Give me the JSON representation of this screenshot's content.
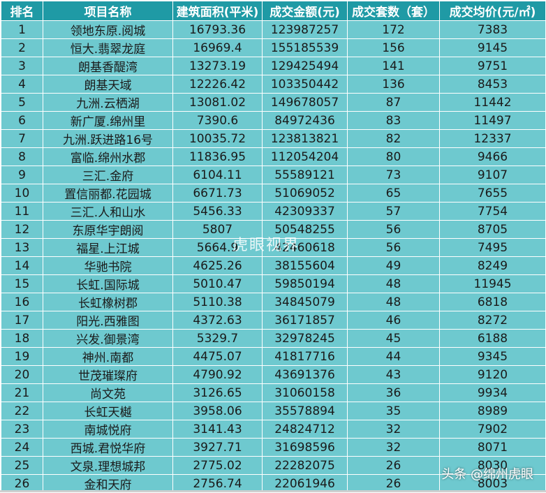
{
  "table": {
    "headers": [
      "排名",
      "项目名称",
      "建筑面积(平米)",
      "成交金额(元)",
      "成交套数（套）",
      "成交均价(元/㎡)"
    ],
    "rows": [
      [
        "1",
        "领地东原.阅城",
        "16793.36",
        "123987257",
        "172",
        "7383"
      ],
      [
        "2",
        "恒大.翡翠龙庭",
        "16969.4",
        "155185539",
        "156",
        "9145"
      ],
      [
        "3",
        "朗基香醍湾",
        "13273.19",
        "129425494",
        "141",
        "9751"
      ],
      [
        "4",
        "朗基天域",
        "12226.42",
        "103350442",
        "136",
        "8453"
      ],
      [
        "5",
        "九洲.云栖湖",
        "13081.02",
        "149678057",
        "87",
        "11442"
      ],
      [
        "6",
        "新广厦.绵州里",
        "7390.6",
        "84972436",
        "83",
        "11497"
      ],
      [
        "7",
        "九洲.跃进路16号",
        "10035.72",
        "123813821",
        "82",
        "12337"
      ],
      [
        "8",
        "富临.绵州水郡",
        "11836.95",
        "112054204",
        "80",
        "9466"
      ],
      [
        "9",
        "三汇.金府",
        "6104.11",
        "55589121",
        "73",
        "9107"
      ],
      [
        "10",
        "置信丽都.花园城",
        "6671.73",
        "51069052",
        "65",
        "7655"
      ],
      [
        "11",
        "三汇.人和山水",
        "5456.33",
        "42309337",
        "57",
        "7754"
      ],
      [
        "12",
        "东原华宇朗阅",
        "5807",
        "50548255",
        "56",
        "8705"
      ],
      [
        "13",
        "福星.上江城",
        "5664.9",
        "42460618",
        "56",
        "7495"
      ],
      [
        "14",
        "华驰书院",
        "4625.26",
        "38155604",
        "49",
        "8249"
      ],
      [
        "15",
        "长虹.国际城",
        "5010.47",
        "59850194",
        "48",
        "11945"
      ],
      [
        "16",
        "长虹橡树郡",
        "5110.38",
        "34845079",
        "48",
        "6818"
      ],
      [
        "17",
        "阳光.西雅图",
        "4372.63",
        "36171857",
        "46",
        "8272"
      ],
      [
        "18",
        "兴发.御景湾",
        "5329.7",
        "32978245",
        "45",
        "6188"
      ],
      [
        "19",
        "神州.南都",
        "4475.07",
        "41817716",
        "44",
        "9345"
      ],
      [
        "20",
        "世茂璀璨府",
        "4790.92",
        "43691376",
        "43",
        "9120"
      ],
      [
        "21",
        "尚文苑",
        "3126.65",
        "31060158",
        "36",
        "9934"
      ],
      [
        "22",
        "长虹天樾",
        "3958.06",
        "35578894",
        "35",
        "8989"
      ],
      [
        "23",
        "南城悦府",
        "3141.43",
        "24824712",
        "32",
        "7902"
      ],
      [
        "24",
        "西城.君悦华府",
        "3927.71",
        "31698596",
        "32",
        "8071"
      ],
      [
        "25",
        "文泉.理想城邦",
        "2775.02",
        "22282075",
        "26",
        "8030"
      ],
      [
        "26",
        "金和天府",
        "2756.74",
        "22061946",
        "26",
        "8003"
      ]
    ]
  },
  "watermark": "虎眼视界",
  "credit": "头条 @绵州虎眼"
}
